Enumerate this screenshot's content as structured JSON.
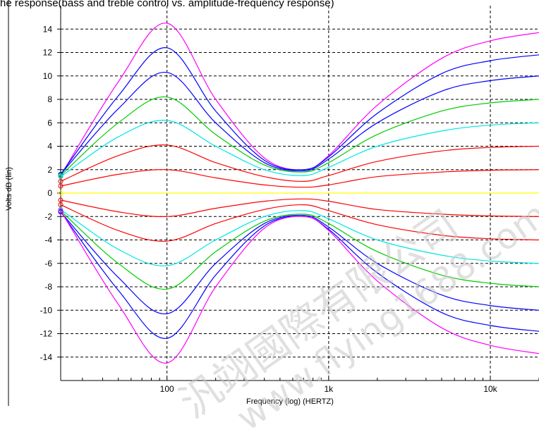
{
  "chart_data": {
    "type": "line",
    "title": "he response(bass and treble control vs. amplitude-frequency response)",
    "xlabel": "Frequency (log) (HERTZ)",
    "ylabel": "Volts dB (lin)",
    "x_scale": "log",
    "xlim": [
      22,
      20000
    ],
    "ylim": [
      -16,
      16
    ],
    "x_ticks": [
      100,
      1000,
      10000
    ],
    "x_tick_labels": [
      "100",
      "1k",
      "10k"
    ],
    "y_ticks": [
      14,
      12,
      10,
      8,
      6,
      4,
      2,
      0,
      -2,
      -4,
      -6,
      -8,
      -10,
      -12,
      -14
    ],
    "grid": true,
    "x": [
      22,
      50,
      100,
      200,
      400,
      700,
      1000,
      2000,
      5000,
      10000,
      20000
    ],
    "series": [
      {
        "color": "#ff00ff",
        "values": [
          1.5,
          9.5,
          14.5,
          8.0,
          3.0,
          2.0,
          3.2,
          7.5,
          11.5,
          13.0,
          13.7
        ]
      },
      {
        "color": "#0000ff",
        "values": [
          1.6,
          8.3,
          12.4,
          7.0,
          2.8,
          2.0,
          3.1,
          6.8,
          10.2,
          11.3,
          11.8
        ]
      },
      {
        "color": "#0000ff",
        "values": [
          1.6,
          7.2,
          10.3,
          6.0,
          2.6,
          1.9,
          2.9,
          6.0,
          8.7,
          9.6,
          10.0
        ]
      },
      {
        "color": "#00cc00",
        "values": [
          1.5,
          6.0,
          8.2,
          5.0,
          2.4,
          1.8,
          2.6,
          5.0,
          7.0,
          7.7,
          8.0
        ]
      },
      {
        "color": "#00e5e5",
        "values": [
          1.4,
          4.8,
          6.2,
          4.0,
          2.0,
          1.5,
          2.2,
          4.0,
          5.3,
          5.8,
          6.0
        ]
      },
      {
        "color": "#ff0000",
        "values": [
          1.0,
          3.2,
          4.1,
          2.6,
          1.4,
          1.0,
          1.5,
          2.7,
          3.6,
          3.9,
          4.0
        ]
      },
      {
        "color": "#ff0000",
        "values": [
          0.6,
          1.6,
          2.0,
          1.3,
          0.7,
          0.5,
          0.7,
          1.4,
          1.8,
          1.95,
          2.0
        ]
      },
      {
        "color": "#ffff00",
        "values": [
          0,
          0,
          0,
          0,
          0,
          0,
          0,
          0,
          0,
          0,
          0
        ]
      },
      {
        "color": "#ff0000",
        "values": [
          -0.6,
          -1.6,
          -2.0,
          -1.3,
          -0.7,
          -0.5,
          -0.7,
          -1.4,
          -1.8,
          -1.95,
          -2.0
        ]
      },
      {
        "color": "#ff0000",
        "values": [
          -1.0,
          -3.2,
          -4.1,
          -2.6,
          -1.4,
          -1.0,
          -1.5,
          -2.7,
          -3.6,
          -3.9,
          -4.0
        ]
      },
      {
        "color": "#00e5e5",
        "values": [
          -1.4,
          -4.8,
          -6.2,
          -4.0,
          -2.0,
          -1.5,
          -2.2,
          -4.0,
          -5.3,
          -5.8,
          -6.0
        ]
      },
      {
        "color": "#00cc00",
        "values": [
          -1.5,
          -6.0,
          -8.2,
          -5.0,
          -2.4,
          -1.8,
          -2.6,
          -5.0,
          -7.0,
          -7.7,
          -8.0
        ]
      },
      {
        "color": "#0000ff",
        "values": [
          -1.6,
          -7.2,
          -10.3,
          -6.0,
          -2.6,
          -1.9,
          -2.9,
          -6.0,
          -8.7,
          -9.6,
          -10.0
        ]
      },
      {
        "color": "#0000ff",
        "values": [
          -1.6,
          -8.3,
          -12.4,
          -7.0,
          -2.8,
          -2.0,
          -3.1,
          -6.8,
          -10.2,
          -11.3,
          -11.8
        ]
      },
      {
        "color": "#ff00ff",
        "values": [
          -1.5,
          -9.5,
          -14.5,
          -8.0,
          -3.0,
          -2.0,
          -3.2,
          -7.5,
          -11.5,
          -13.0,
          -13.7
        ]
      }
    ]
  },
  "watermark": {
    "text_cn": "汎翊國際有限公司",
    "text_url": "www.flying1688.com"
  }
}
